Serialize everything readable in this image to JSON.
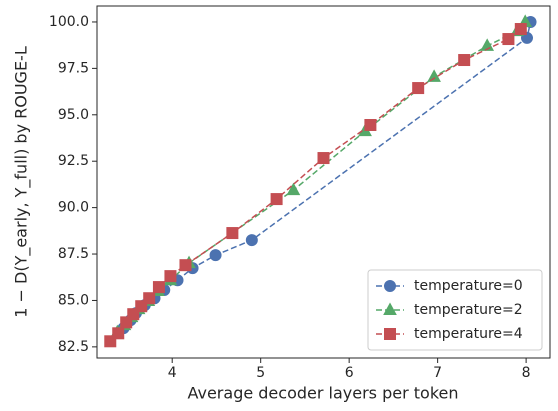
{
  "chart_data": {
    "type": "line",
    "xlabel": "Average decoder layers per token",
    "ylabel": "1 − D(Y_early, Y_full) by ROUGE-L",
    "xlim": [
      3.15,
      8.27
    ],
    "xticks": [
      4,
      5,
      6,
      7,
      8
    ],
    "ylim": [
      81.9,
      100.86
    ],
    "yticks": [
      {
        "value": 82.5,
        "label": "82.5"
      },
      {
        "value": 85,
        "label": "85.0"
      },
      {
        "value": 87.5,
        "label": "87.5"
      },
      {
        "value": 90,
        "label": "90.0"
      },
      {
        "value": 92.5,
        "label": "92.5"
      },
      {
        "value": 95,
        "label": "95.0"
      },
      {
        "value": 97.5,
        "label": "97.5"
      },
      {
        "value": 100,
        "label": "100.0"
      }
    ],
    "legend": "lower right",
    "series": [
      {
        "name": "temperature=0",
        "color": "#4c72b0",
        "marker": "circle",
        "x": [
          3.45,
          3.53,
          3.59,
          3.69,
          3.8,
          3.91,
          4.06,
          4.23,
          4.49,
          4.9,
          8.01,
          8.05
        ],
        "values": [
          83.51,
          83.94,
          84.32,
          84.75,
          85.12,
          85.56,
          86.09,
          86.74,
          87.44,
          88.25,
          99.14,
          100.0
        ]
      },
      {
        "name": "temperature=2",
        "color": "#55a868",
        "marker": "triangle",
        "x": [
          3.38,
          3.46,
          3.54,
          3.62,
          3.73,
          3.84,
          3.98,
          4.19,
          5.37,
          6.18,
          6.96,
          7.56,
          7.9,
          7.99
        ],
        "values": [
          83.29,
          83.67,
          84.1,
          84.53,
          84.97,
          85.51,
          86.09,
          87.01,
          90.94,
          94.12,
          97.04,
          98.71,
          99.51,
          100.0
        ]
      },
      {
        "name": "temperature=4",
        "color": "#c44e52",
        "marker": "square",
        "x": [
          3.3,
          3.39,
          3.48,
          3.56,
          3.65,
          3.74,
          3.85,
          3.98,
          4.15,
          4.68,
          5.18,
          5.71,
          6.24,
          6.78,
          7.3,
          7.8,
          7.94
        ],
        "values": [
          82.8,
          83.23,
          83.82,
          84.26,
          84.69,
          85.12,
          85.72,
          86.31,
          86.9,
          88.63,
          90.46,
          92.67,
          94.45,
          96.44,
          97.95,
          99.08,
          99.62
        ]
      }
    ]
  }
}
